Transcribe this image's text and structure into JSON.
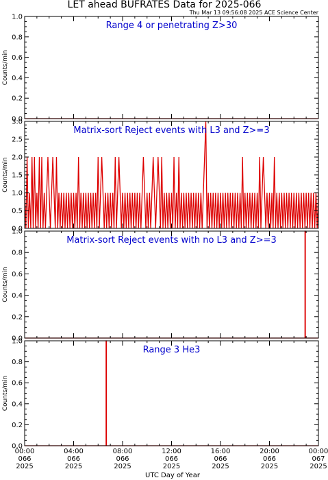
{
  "title": "LET ahead BUFRATES Data for 2025-066",
  "timestamp": "Thu Mar 13 09:56:08 2025 ACE Science Center",
  "xlabel": "UTC Day of Year",
  "colors": {
    "series": "#dd0000",
    "panel_title": "#0000cc",
    "axes": "#000000"
  },
  "chart_data": [
    {
      "type": "line",
      "title": "Range 4 or  penetrating Z>30",
      "ylabel": "Counts/min",
      "ylim": [
        0,
        1.0
      ],
      "yticks": [
        "0.0",
        "0.2",
        "0.4",
        "0.6",
        "0.8",
        "1.0"
      ],
      "x_hours_utc": [
        0,
        24
      ],
      "constant_value": 0,
      "spikes": []
    },
    {
      "type": "line",
      "title": "Matrix-sort Reject events with L3 and Z>=3",
      "ylabel": "Counts/min",
      "ylim": [
        0,
        3.0
      ],
      "yticks": [
        "0.0",
        "0.5",
        "1.0",
        "1.5",
        "2.0",
        "2.5",
        "3.0"
      ],
      "x_hours_utc": [
        0,
        24
      ],
      "baseline_pattern": "alternating 0 and 1 counts/min throughout the day",
      "peaks_value_2_hours_utc": [
        0.2,
        0.6,
        0.8,
        1.2,
        1.35,
        1.9,
        2.3,
        2.6,
        4.4,
        6.0,
        6.3,
        7.4,
        7.7,
        9.7,
        10.5,
        10.9,
        11.2,
        12.2,
        12.6,
        14.7,
        17.8,
        19.2,
        19.5,
        20.4
      ],
      "peaks_value_3_hours_utc": [
        14.8
      ]
    },
    {
      "type": "line",
      "title": "Matrix-sort Reject events with no L3 and Z>=3",
      "ylabel": "Counts/min",
      "ylim": [
        0,
        1.0
      ],
      "yticks": [
        "0.0",
        "0.2",
        "0.4",
        "0.6",
        "0.8",
        "1.0"
      ],
      "x_hours_utc": [
        0,
        24
      ],
      "constant_value": 0,
      "spikes": [
        {
          "hour_utc": 22.9,
          "value": 1.0
        }
      ]
    },
    {
      "type": "line",
      "title": "Range 3 He3",
      "ylabel": "Counts/min",
      "ylim": [
        0,
        1.0
      ],
      "yticks": [
        "0.0",
        "0.2",
        "0.4",
        "0.6",
        "0.8",
        "1.0"
      ],
      "x_hours_utc": [
        0,
        24
      ],
      "constant_value": 0,
      "spikes": [
        {
          "hour_utc": 6.65,
          "value": 1.0
        }
      ]
    }
  ],
  "x_ticks": [
    {
      "time": "00:00",
      "doy": "066",
      "year": "2025"
    },
    {
      "time": "04:00",
      "doy": "066",
      "year": "2025"
    },
    {
      "time": "08:00",
      "doy": "066",
      "year": "2025"
    },
    {
      "time": "12:00",
      "doy": "066",
      "year": "2025"
    },
    {
      "time": "16:00",
      "doy": "066",
      "year": "2025"
    },
    {
      "time": "20:00",
      "doy": "066",
      "year": "2025"
    },
    {
      "time": "00:00",
      "doy": "067",
      "year": "2025"
    }
  ]
}
